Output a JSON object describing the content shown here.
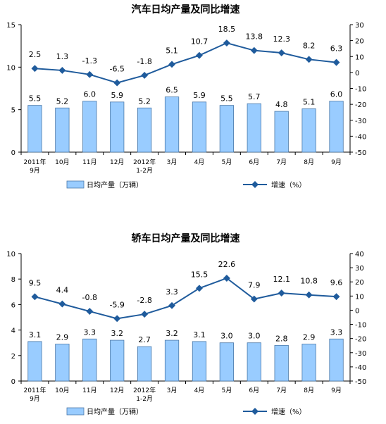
{
  "chart_data": [
    {
      "type": "bar",
      "title": "汽车日均产量及同比增速",
      "categories": [
        "2011年\n9月",
        "10月",
        "11月",
        "12月",
        "2012年\n1-2月",
        "3月",
        "4月",
        "5月",
        "6月",
        "7月",
        "8月",
        "9月"
      ],
      "series": [
        {
          "name": "日均产量（万辆）",
          "type": "bar",
          "axis": "left",
          "values": [
            5.5,
            5.2,
            6.0,
            5.9,
            5.2,
            6.5,
            5.9,
            5.5,
            5.7,
            4.8,
            5.1,
            6.0
          ],
          "labels": [
            "5.5",
            "5.2",
            "6.0",
            "5.9",
            "5.2",
            "6.5",
            "5.9",
            "5.5",
            "5.7",
            "4.8",
            "5.1",
            "6.0"
          ]
        },
        {
          "name": "增速（%）",
          "type": "line",
          "axis": "right",
          "values": [
            2.5,
            1.3,
            -1.3,
            -6.5,
            -1.8,
            5.1,
            10.7,
            18.5,
            13.8,
            12.3,
            8.2,
            6.3
          ],
          "labels": [
            "2.5",
            "1.3",
            "-1.3",
            "-6.5",
            "-1.8",
            "5.1",
            "10.7",
            "18.5",
            "13.8",
            "12.3",
            "8.2",
            "6.3"
          ]
        }
      ],
      "ylim": [
        0,
        15
      ],
      "y_ticks": [
        "0",
        "5",
        "10",
        "15"
      ],
      "y2lim": [
        -50,
        30
      ],
      "y2_ticks": [
        "-50",
        "-40",
        "-30",
        "-20",
        "-10",
        "0",
        "10",
        "20",
        "30"
      ],
      "grid": false,
      "legend": "bottom",
      "colors": {
        "bar_fill": "#99ccff",
        "bar_stroke": "#4a78a8",
        "line": "#1f5b9c"
      }
    },
    {
      "type": "bar",
      "title": "轿车日均产量及同比增速",
      "categories": [
        "2011年\n9月",
        "10月",
        "11月",
        "12月",
        "2012年\n1-2月",
        "3月",
        "4月",
        "5月",
        "6月",
        "7月",
        "8月",
        "9月"
      ],
      "series": [
        {
          "name": "日均产量（万辆）",
          "type": "bar",
          "axis": "left",
          "values": [
            3.1,
            2.9,
            3.3,
            3.2,
            2.7,
            3.2,
            3.1,
            3.0,
            3.0,
            2.8,
            2.9,
            3.3
          ],
          "labels": [
            "3.1",
            "2.9",
            "3.3",
            "3.2",
            "2.7",
            "3.2",
            "3.1",
            "3.0",
            "3.0",
            "2.8",
            "2.9",
            "3.3"
          ]
        },
        {
          "name": "增速（%）",
          "type": "line",
          "axis": "right",
          "values": [
            9.5,
            4.4,
            -0.8,
            -5.9,
            -2.8,
            3.3,
            15.5,
            22.6,
            7.9,
            12.1,
            10.8,
            9.6
          ],
          "labels": [
            "9.5",
            "4.4",
            "-0.8",
            "-5.9",
            "-2.8",
            "3.3",
            "15.5",
            "22.6",
            "7.9",
            "12.1",
            "10.8",
            "9.6"
          ]
        }
      ],
      "ylim": [
        0,
        10
      ],
      "y_ticks": [
        "0",
        "2",
        "4",
        "6",
        "8",
        "10"
      ],
      "y2lim": [
        -50,
        40
      ],
      "y2_ticks": [
        "-50",
        "-40",
        "-30",
        "-20",
        "-10",
        "0",
        "10",
        "20",
        "30",
        "40"
      ],
      "grid": false,
      "legend": "bottom",
      "colors": {
        "bar_fill": "#99ccff",
        "bar_stroke": "#4a78a8",
        "line": "#1f5b9c"
      }
    }
  ]
}
